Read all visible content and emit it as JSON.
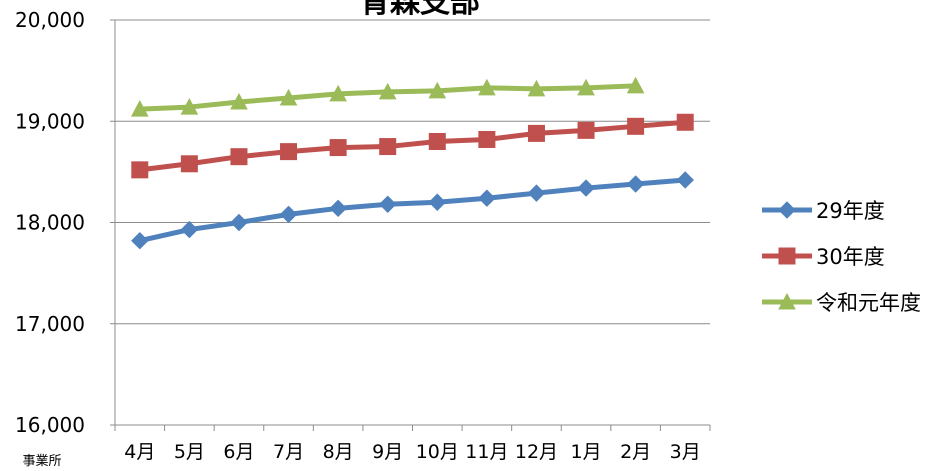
{
  "chart_data": {
    "type": "line",
    "title": "青森支部",
    "ylabel": "事業所",
    "xlabel": "",
    "categories": [
      "4月",
      "5月",
      "6月",
      "7月",
      "8月",
      "9月",
      "10月",
      "11月",
      "12月",
      "1月",
      "2月",
      "3月"
    ],
    "ylim": [
      16000,
      20000
    ],
    "yticks": [
      16000,
      17000,
      18000,
      19000,
      20000
    ],
    "ytick_labels": [
      "16,000",
      "17,000",
      "18,000",
      "19,000",
      "20,000"
    ],
    "grid": true,
    "legend": "right",
    "series": [
      {
        "name": "29年度",
        "color": "#4F81BD",
        "marker": "diamond",
        "values": [
          17820,
          17930,
          18000,
          18080,
          18140,
          18180,
          18200,
          18240,
          18290,
          18340,
          18380,
          18420
        ]
      },
      {
        "name": "30年度",
        "color": "#C0504D",
        "marker": "square",
        "values": [
          18520,
          18580,
          18650,
          18700,
          18740,
          18750,
          18800,
          18820,
          18880,
          18910,
          18950,
          18990
        ]
      },
      {
        "name": "令和元年度",
        "color": "#9BBB59",
        "marker": "triangle",
        "values": [
          19120,
          19140,
          19190,
          19230,
          19270,
          19290,
          19300,
          19330,
          19320,
          19330,
          19350,
          null
        ]
      }
    ]
  }
}
